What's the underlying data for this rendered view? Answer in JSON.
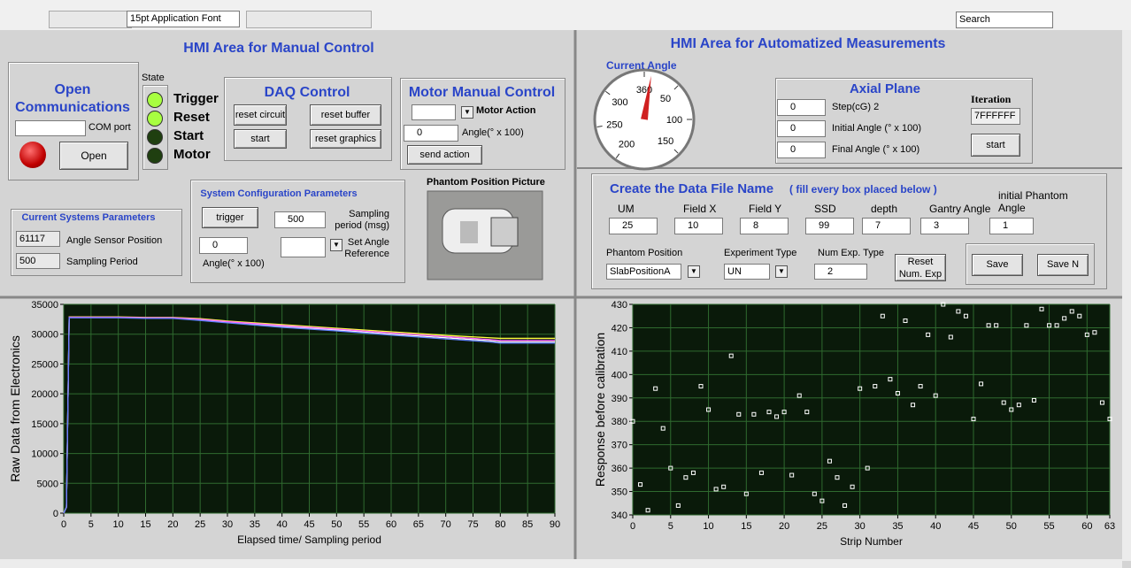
{
  "toolbar": {
    "font": "15pt Application Font",
    "search": "Search"
  },
  "manual": {
    "title": "HMI Area for Manual Control",
    "open_comm": "Open Communications",
    "com_port": "COM port",
    "open_button": "Open",
    "state": "State",
    "indicators": [
      "Trigger",
      "Reset",
      "Start",
      "Motor"
    ],
    "daq": {
      "title": "DAQ Control",
      "buttons": [
        "reset circuit",
        "reset buffer",
        "start",
        "reset graphics"
      ]
    },
    "motor": {
      "title": "Motor Manual Control",
      "action": "Motor Action",
      "angle_value": 0,
      "angle_label": "Angle(° x 100)",
      "send": "send action"
    },
    "sysconfig": {
      "title": "System Configuration Parameters",
      "trigger": "trigger",
      "sampling_value": 500,
      "sampling_label": "Sampling period (msg)",
      "angle_value": 0,
      "angle_label": "Angle(° x 100)",
      "set_angle": "Set Angle Reference"
    },
    "current": {
      "title": "Current Systems Parameters",
      "rows": [
        {
          "value": 61117,
          "label": "Angle Sensor  Position"
        },
        {
          "value": 500,
          "label": "Sampling Period"
        }
      ]
    },
    "phantom_picture": "Phantom Position Picture"
  },
  "auto": {
    "title": "HMI Area for Automatized Measurements",
    "current_angle": "Current Angle",
    "gauge": {
      "ticks": [
        50,
        100,
        150,
        200,
        250,
        300,
        360
      ],
      "value": 10
    },
    "axial": {
      "title": "Axial Plane",
      "rows": [
        {
          "value": 0,
          "label": "Step(cG)  2"
        },
        {
          "value": 0,
          "label": "Initial Angle (° x 100)"
        },
        {
          "value": 0,
          "label": "Final Angle (° x 100)"
        }
      ],
      "iteration": "Iteration",
      "iteration_value": "7FFFFFF",
      "start": "start"
    },
    "file": {
      "title": "Create the Data File Name",
      "hint": "( fill every box placed below )",
      "fields": [
        {
          "label": "UM",
          "value": 25
        },
        {
          "label": "Field X",
          "value": 10
        },
        {
          "label": "Field Y",
          "value": 8
        },
        {
          "label": "SSD",
          "value": 99
        },
        {
          "label": "depth",
          "value": 7
        },
        {
          "label": "Gantry Angle",
          "value": 3
        },
        {
          "label": "initial Phantom Angle",
          "value": 1
        }
      ],
      "phantom_position": {
        "label": "Phantom Position",
        "value": "SlabPositionA"
      },
      "experiment_type": {
        "label": "Experiment Type",
        "value": "UN"
      },
      "num_exp": {
        "label": "Num Exp. Type",
        "value": 2
      },
      "reset": "Reset Num. Exp",
      "save": "Save",
      "save_n": "Save N"
    }
  },
  "chart_data": [
    {
      "type": "line",
      "xlabel": "Elapsed  time/ Sampling period",
      "ylabel": "Raw Data from Electronics",
      "x": [
        0,
        0.5,
        1,
        5,
        10,
        15,
        20,
        25,
        30,
        40,
        50,
        60,
        70,
        78,
        80,
        90
      ],
      "series": [
        {
          "color": "#ffff40",
          "values": [
            0,
            1000,
            32900,
            32900,
            32900,
            32800,
            32800,
            32600,
            32200,
            31600,
            31000,
            30400,
            29800,
            29400,
            29300,
            29300
          ]
        },
        {
          "color": "#ffffff",
          "values": [
            0,
            1000,
            32800,
            32800,
            32800,
            32700,
            32700,
            32400,
            32000,
            31300,
            30700,
            30000,
            29400,
            28900,
            28700,
            28700
          ]
        },
        {
          "color": "#ff60ff",
          "values": [
            0,
            1000,
            32850,
            32850,
            32850,
            32750,
            32750,
            32500,
            32100,
            31450,
            30850,
            30200,
            29600,
            29100,
            28950,
            28950
          ]
        },
        {
          "color": "#6080ff",
          "values": [
            0,
            1000,
            32750,
            32750,
            32750,
            32650,
            32650,
            32300,
            31900,
            31150,
            30550,
            29850,
            29200,
            28700,
            28500,
            28500
          ]
        }
      ],
      "xlim": [
        0,
        90
      ],
      "ylim": [
        0,
        35000
      ],
      "xticks": [
        0,
        5,
        10,
        15,
        20,
        25,
        30,
        35,
        40,
        45,
        50,
        55,
        60,
        65,
        70,
        75,
        80,
        85,
        90
      ],
      "yticks": [
        0,
        5000,
        10000,
        15000,
        20000,
        25000,
        30000,
        35000
      ],
      "grid": true
    },
    {
      "type": "scatter",
      "xlabel": "Strip Number",
      "ylabel": "Response before calibration",
      "color": "#ffffff",
      "x": [
        0,
        1,
        2,
        3,
        4,
        5,
        6,
        7,
        8,
        9,
        10,
        11,
        12,
        13,
        14,
        15,
        16,
        17,
        18,
        19,
        20,
        21,
        22,
        23,
        24,
        25,
        26,
        27,
        28,
        29,
        30,
        31,
        32,
        33,
        34,
        35,
        36,
        37,
        38,
        39,
        40,
        41,
        42,
        43,
        44,
        45,
        46,
        47,
        48,
        49,
        50,
        51,
        52,
        53,
        54,
        55,
        56,
        57,
        58,
        59,
        60,
        61,
        62,
        63
      ],
      "values": [
        380,
        353,
        342,
        394,
        377,
        360,
        344,
        356,
        358,
        395,
        385,
        351,
        352,
        408,
        383,
        349,
        383,
        358,
        384,
        382,
        384,
        357,
        391,
        384,
        349,
        346,
        363,
        356,
        344,
        352,
        394,
        360,
        395,
        425,
        398,
        392,
        423,
        387,
        395,
        417,
        391,
        430,
        416,
        427,
        425,
        381,
        396,
        421,
        421,
        388,
        385,
        387,
        421,
        389,
        428,
        421,
        421,
        424,
        427,
        425,
        417,
        418,
        388,
        381
      ],
      "xlim": [
        0,
        63
      ],
      "ylim": [
        340,
        430
      ],
      "xticks": [
        0,
        5,
        10,
        15,
        20,
        25,
        30,
        35,
        40,
        45,
        50,
        55,
        60,
        63
      ],
      "yticks": [
        340,
        350,
        360,
        370,
        380,
        390,
        400,
        410,
        420,
        430
      ],
      "grid": true
    }
  ]
}
